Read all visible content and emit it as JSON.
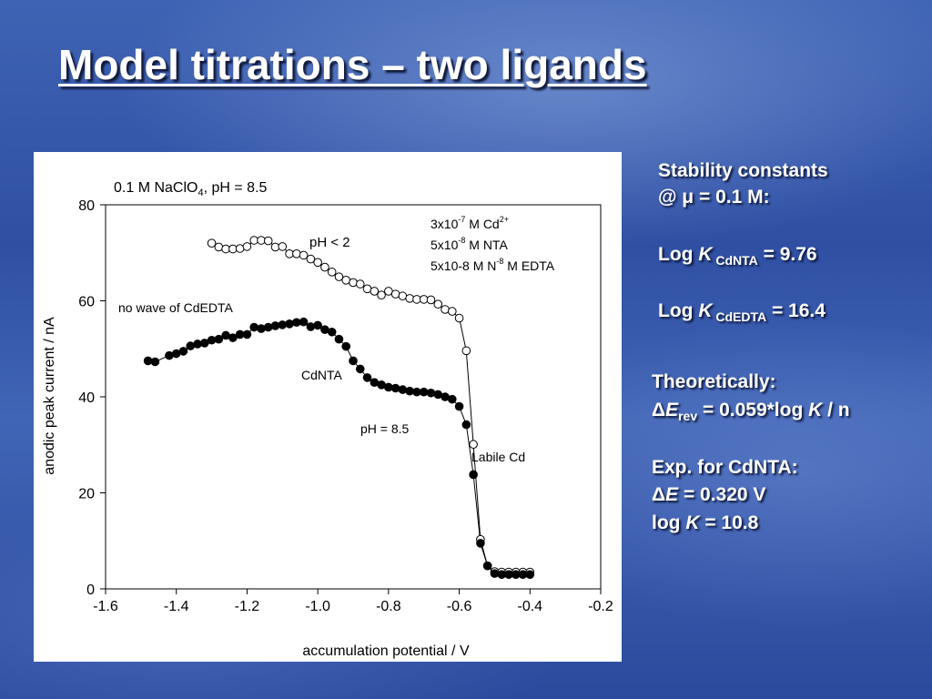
{
  "slide": {
    "title": "Model titrations – two ligands"
  },
  "right_panel": {
    "stability_line1": "Stability constants",
    "stability_line2": "@ μ = 0.1 M:",
    "logk_cdnta_prefix": "Log ",
    "logk_cdnta_k": "K",
    "logk_cdnta_sub": " CdNTA",
    "logk_cdnta_value": " = 9.76",
    "logk_cdedta_prefix": "Log ",
    "logk_cdedta_k": "K",
    "logk_cdedta_sub": " CdEDTA",
    "logk_cdedta_value": " = 16.4",
    "theoretically": "Theoretically:",
    "delta": "Δ",
    "e_symbol": "E",
    "rev_sub": "rev",
    "formula_rest_1": " = 0.059*log ",
    "formula_k": "K",
    "formula_rest_2": " / n",
    "exp_line": "Exp. for CdNTA:",
    "exp_e_rest": " = 0.320 V",
    "log_prefix": "log ",
    "log_k": "K",
    "log_value": " = 10.8"
  },
  "chart_data": {
    "type": "scatter",
    "title_main": "0.1 M NaClO",
    "title_sub": "4",
    "title_rest": ", pH = 8.5",
    "xlabel": "accumulation potential / V",
    "ylabel": "anodic peak current / nA",
    "xlim": [
      -1.6,
      -0.2
    ],
    "ylim": [
      0,
      80
    ],
    "xticks": [
      "-1.6",
      "-1.4",
      "-1.2",
      "-1.0",
      "-0.8",
      "-0.6",
      "-0.4",
      "-0.2"
    ],
    "xtick_values": [
      -1.6,
      -1.4,
      -1.2,
      -1.0,
      -0.8,
      -0.6,
      -0.4,
      -0.2
    ],
    "yticks": [
      "0",
      "20",
      "40",
      "60",
      "80"
    ],
    "ytick_values": [
      0,
      20,
      40,
      60,
      80
    ],
    "annotations": {
      "conc_line1_a": "3x10",
      "conc_line1_sup": "-7",
      "conc_line1_b": " M Cd",
      "conc_line1_sup2": "2+",
      "conc_line2_a": "5x10",
      "conc_line2_sup": "-8",
      "conc_line2_b": " M NTA",
      "conc_line3_a": "5x10-8 M N",
      "conc_line3_sup": "-8",
      "conc_line3_b": " M EDTA",
      "ph_low": "pH < 2",
      "no_wave": "no wave of CdEDTA",
      "cdnta": "CdNTA",
      "ph_85": "pH = 8.5",
      "labile": "Labile Cd"
    },
    "series": [
      {
        "name": "pH < 2",
        "marker": "open-circle",
        "x": [
          -1.3,
          -1.28,
          -1.26,
          -1.24,
          -1.22,
          -1.2,
          -1.18,
          -1.16,
          -1.14,
          -1.12,
          -1.1,
          -1.08,
          -1.06,
          -1.04,
          -1.02,
          -1.0,
          -0.98,
          -0.96,
          -0.94,
          -0.92,
          -0.9,
          -0.88,
          -0.86,
          -0.84,
          -0.82,
          -0.8,
          -0.78,
          -0.76,
          -0.74,
          -0.72,
          -0.7,
          -0.68,
          -0.66,
          -0.64,
          -0.62,
          -0.6,
          -0.58,
          -0.56,
          -0.54,
          -0.52,
          -0.5,
          -0.48,
          -0.46,
          -0.44,
          -0.42,
          -0.4
        ],
        "y": [
          72.0,
          71.2,
          70.8,
          70.8,
          70.9,
          71.3,
          72.6,
          72.6,
          72.5,
          71.2,
          71.3,
          69.8,
          69.8,
          69.5,
          68.7,
          68.0,
          67.0,
          66.0,
          65.0,
          64.3,
          63.8,
          63.5,
          62.5,
          62.0,
          61.2,
          62.0,
          61.4,
          61.0,
          60.5,
          60.3,
          60.3,
          60.2,
          59.3,
          58.2,
          57.8,
          56.4,
          49.6,
          30.1,
          10.3,
          4.8,
          3.6,
          3.5,
          3.5,
          3.5,
          3.5,
          3.5
        ]
      },
      {
        "name": "pH = 8.5",
        "marker": "filled-circle",
        "x": [
          -1.48,
          -1.46,
          -1.42,
          -1.4,
          -1.38,
          -1.36,
          -1.34,
          -1.32,
          -1.3,
          -1.28,
          -1.26,
          -1.24,
          -1.22,
          -1.2,
          -1.18,
          -1.16,
          -1.14,
          -1.12,
          -1.1,
          -1.08,
          -1.06,
          -1.04,
          -1.02,
          -1.0,
          -0.98,
          -0.96,
          -0.94,
          -0.92,
          -0.9,
          -0.88,
          -0.86,
          -0.84,
          -0.82,
          -0.8,
          -0.78,
          -0.76,
          -0.74,
          -0.72,
          -0.7,
          -0.68,
          -0.66,
          -0.64,
          -0.62,
          -0.6,
          -0.58,
          -0.56,
          -0.54,
          -0.52,
          -0.5,
          -0.48,
          -0.46,
          -0.44,
          -0.42,
          -0.4
        ],
        "y": [
          47.5,
          47.3,
          48.6,
          49.0,
          49.5,
          50.6,
          51.0,
          51.2,
          51.8,
          52.0,
          52.8,
          52.3,
          53.0,
          53.0,
          54.5,
          54.2,
          54.5,
          54.8,
          55.0,
          55.2,
          55.5,
          55.6,
          54.6,
          54.9,
          54.0,
          53.5,
          52.0,
          50.5,
          47.5,
          45.8,
          44.0,
          43.0,
          42.5,
          42.0,
          41.8,
          41.5,
          41.2,
          41.0,
          41.0,
          40.8,
          40.5,
          40.0,
          39.5,
          38.0,
          34.2,
          23.8,
          9.5,
          4.8,
          3.2,
          3.0,
          3.0,
          3.0,
          3.0,
          3.0
        ]
      }
    ]
  }
}
